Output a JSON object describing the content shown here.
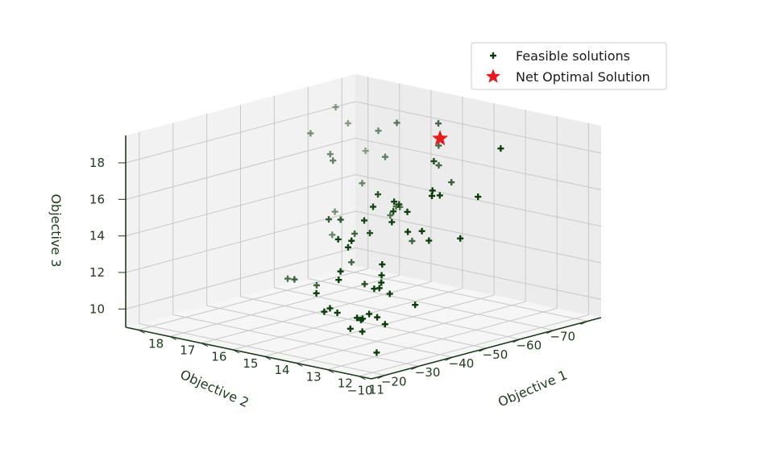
{
  "chart_data": {
    "type": "scatter3d",
    "title": "",
    "xlabel": "Objective 1",
    "ylabel": "Objective 2",
    "zlabel": "Objective 3",
    "xlim": [
      10.6,
      18.4
    ],
    "ylim": [
      -74,
      -6
    ],
    "zlim": [
      9.0,
      19.5
    ],
    "xticks": [
      11,
      12,
      13,
      14,
      15,
      16,
      17,
      18
    ],
    "yticks": [
      -70,
      -60,
      -50,
      -40,
      -30,
      -20,
      -10
    ],
    "zticks": [
      10,
      12,
      14,
      16,
      18
    ],
    "series": [
      {
        "name": "Feasible solutions",
        "marker": "plus",
        "color": "#0b3d0b",
        "points": [
          [
            18.0,
            -64.2,
            12.6
          ],
          [
            17.6,
            -59.7,
            11.7
          ],
          [
            17.1,
            -63.9,
            14.5
          ],
          [
            16.5,
            -65.1,
            16.1
          ],
          [
            16.9,
            -66.8,
            17.3
          ],
          [
            18.1,
            -74.2,
            15.4
          ],
          [
            18.3,
            -70.9,
            17.0
          ],
          [
            18.5,
            -69.1,
            17.9
          ],
          [
            18.3,
            -59.8,
            17.0
          ],
          [
            17.9,
            -61.9,
            15.9
          ],
          [
            16.0,
            -63.9,
            18.2
          ],
          [
            17.3,
            -57.1,
            16.0
          ],
          [
            14.5,
            -62.2,
            18.8
          ],
          [
            14.6,
            -63.2,
            17.5
          ],
          [
            14.0,
            -61.4,
            15.8
          ],
          [
            15.8,
            -60.1,
            13.4
          ],
          [
            15.7,
            -62.0,
            13.8
          ],
          [
            14.5,
            -62.3,
            16.5
          ],
          [
            15.8,
            -61.8,
            13.8
          ],
          [
            14.8,
            -57.2,
            12.5
          ],
          [
            15.7,
            -48.6,
            13.0
          ],
          [
            15.8,
            -48.6,
            11.4
          ],
          [
            14.5,
            -41.9,
            13.8
          ],
          [
            14.5,
            -44.3,
            15.8
          ],
          [
            13.7,
            -43.1,
            15.6
          ],
          [
            11.6,
            -53.6,
            18.9
          ],
          [
            13.4,
            -50.6,
            17.7
          ],
          [
            13.6,
            -40.7,
            15.9
          ],
          [
            13.7,
            -41.4,
            15.3
          ],
          [
            13.5,
            -39.1,
            14.9
          ],
          [
            12.1,
            -37.9,
            16.9
          ],
          [
            12.2,
            -39.0,
            17.1
          ],
          [
            11.1,
            -42.2,
            17.0
          ],
          [
            12.6,
            -44.9,
            16.4
          ],
          [
            15.3,
            -40.7,
            14.3
          ],
          [
            15.9,
            -42.8,
            14.0
          ],
          [
            11.8,
            -43.5,
            14.4
          ],
          [
            12.7,
            -42.6,
            14.0
          ],
          [
            16.4,
            -37.3,
            10.8
          ],
          [
            17.3,
            -43.7,
            10.2
          ],
          [
            16.1,
            -41.1,
            10.4
          ],
          [
            14.6,
            -41.3,
            11.0
          ],
          [
            14.4,
            -31.6,
            14.0
          ],
          [
            13.7,
            -29.0,
            14.3
          ],
          [
            14.0,
            -38.2,
            15.6
          ],
          [
            14.1,
            -36.5,
            14.9
          ],
          [
            13.3,
            -41.8,
            15.4
          ],
          [
            14.3,
            -33.6,
            13.5
          ],
          [
            14.0,
            -28.0,
            12.1
          ],
          [
            12.0,
            -34.0,
            15.2
          ],
          [
            12.2,
            -31.7,
            15.2
          ],
          [
            13.3,
            -34.2,
            12.3
          ],
          [
            13.8,
            -26.7,
            12.7
          ],
          [
            11.1,
            -23.6,
            12.0
          ],
          [
            12.8,
            -29.7,
            13.3
          ],
          [
            12.7,
            -28.5,
            12.4
          ],
          [
            14.6,
            -27.0,
            11.2
          ],
          [
            11.8,
            -22.6,
            12.4
          ],
          [
            13.6,
            -21.7,
            11.0
          ],
          [
            12.4,
            -19.7,
            10.9
          ],
          [
            12.0,
            -21.4,
            12.7
          ],
          [
            11.8,
            -18.9,
            11.3
          ],
          [
            11.2,
            -15.6,
            11.3
          ],
          [
            11.8,
            -16.5,
            11.6
          ],
          [
            13.6,
            -20.0,
            10.9
          ],
          [
            11.6,
            -12.6,
            10.9
          ],
          [
            12.0,
            -12.8,
            10.9
          ],
          [
            12.0,
            -14.8,
            11.4
          ],
          [
            10.8,
            -9.4,
            10.2
          ],
          [
            11.6,
            -12.7,
            11.6
          ],
          [
            11.2,
            -12.4,
            13.4
          ],
          [
            12.2,
            -10.8,
            11.8
          ]
        ]
      },
      {
        "name": "Net Optimal Solution",
        "marker": "star",
        "color": "#e8191b",
        "points": [
          [
            14.8,
            -65.5,
            17.7
          ]
        ]
      }
    ],
    "grid": true,
    "legend_position": "top-right"
  },
  "colors": {
    "axis_text": "#1d3a1d",
    "grid": "#c8c8c8",
    "pane_left": "#f2f2f2",
    "pane_right": "#ececec",
    "pane_floor": "#f6f6f6",
    "feasible_marker": "#0b3d0b",
    "optimal_marker": "#e8191b"
  }
}
